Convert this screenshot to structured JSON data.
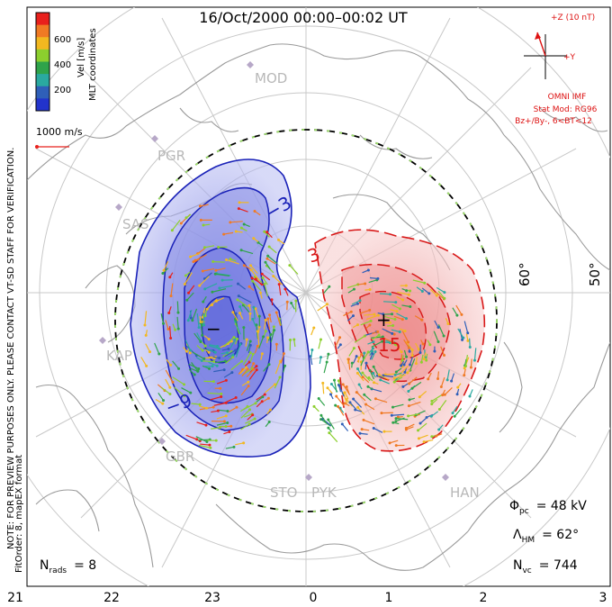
{
  "title": "16/Oct/2000 00:00–00:02 UT",
  "colorbar": {
    "ticks": [
      "600",
      "400",
      "200"
    ],
    "unit_label": "Vel [m/s]",
    "coord_label": "MLT coordinates",
    "colors": [
      "#e8201c",
      "#f07a24",
      "#f2b820",
      "#8ccf2e",
      "#2fa34a",
      "#2aa9a0",
      "#2f5fb8",
      "#2233cc"
    ]
  },
  "scale_vector": "1000 m/s",
  "imf": {
    "z_label": "+Z (10 nT)",
    "y_label": "+Y",
    "title": "OMNI IMF",
    "model": "Stat Mod: RG96",
    "condition": "Bz+/By-, 6<BT<12",
    "color": "#dd1111"
  },
  "stations": [
    "MOD",
    "PGR",
    "SAS",
    "KAP",
    "GBR",
    "STO",
    "PYK",
    "HAN"
  ],
  "lat_labels": [
    "60°",
    "50°"
  ],
  "contour_labels": {
    "neg": "−9",
    "neg3": "−3",
    "pos": "15",
    "pos3": "3",
    "minus": "−",
    "plus": "+"
  },
  "stats": {
    "phi_sym": "Φ",
    "phi_sub": "pc",
    "phi_val": "= 48 kV",
    "lam_sym": "Λ",
    "lam_sub": "HM",
    "lam_val": "= 62°",
    "nvc_sym": "N",
    "nvc_sub": "vc",
    "nvc_val": "= 744",
    "nrads_sym": "N",
    "nrads_sub": "rads",
    "nrads_val": "= 8"
  },
  "side_note": "NOTE: FOR PREVIEW PURPOSES ONLY. PLEASE CONTACT VT-SD STAFF FOR VERIFICATION.",
  "side_note2": "FitOrder: 8, mapEX format",
  "mlt_axis": [
    "21",
    "22",
    "23",
    "0",
    "1",
    "2",
    "3"
  ],
  "fill_colors": {
    "neg": "#6d74e0",
    "pos": "#ec8a8a",
    "neg_line": "#1a22b8",
    "pos_line": "#d81818"
  }
}
